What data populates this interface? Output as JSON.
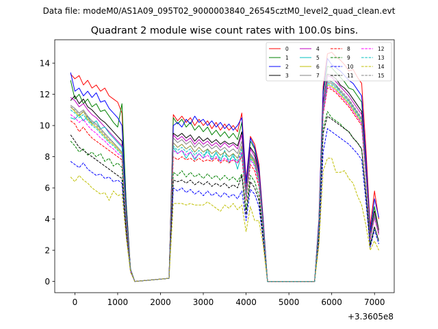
{
  "figure": {
    "suptitle": "Data file: modeM0/AS1A09_095T02_9000003840_26545cztM0_level2_quad_clean.evt"
  },
  "chart_data": {
    "type": "line",
    "title": "Quadrant 2 module wise count rates with 100.0s bins.",
    "xlabel": "",
    "ylabel": "",
    "offset_label": "+3.3605e8",
    "xlim": [
      -470,
      7460
    ],
    "ylim": [
      -0.72,
      15.5
    ],
    "xticks": [
      0,
      1000,
      2000,
      3000,
      4000,
      5000,
      6000,
      7000
    ],
    "yticks": [
      0,
      2,
      4,
      6,
      8,
      10,
      12,
      14
    ],
    "legend": {
      "location": "top-right",
      "columns": 4
    },
    "x": [
      -100,
      0,
      100,
      200,
      300,
      400,
      500,
      600,
      700,
      800,
      900,
      1000,
      1100,
      1200,
      1300,
      1400,
      2200,
      2300,
      2400,
      2500,
      2600,
      2700,
      2800,
      2900,
      3000,
      3100,
      3200,
      3300,
      3400,
      3500,
      3600,
      3700,
      3800,
      3900,
      4000,
      4100,
      4200,
      4300,
      4400,
      4500,
      5600,
      5700,
      5800,
      5900,
      6000,
      6100,
      6200,
      6300,
      6400,
      6500,
      6600,
      6700,
      6800,
      6900,
      7000,
      7100
    ],
    "series": [
      {
        "name": "0",
        "color": "#ff0000",
        "dash": false,
        "values": [
          13.3,
          13.0,
          13.2,
          12.6,
          12.9,
          12.4,
          12.6,
          12.2,
          12.4,
          11.9,
          11.7,
          11.5,
          10.8,
          5.0,
          0.8,
          0.0,
          0.2,
          10.7,
          10.3,
          10.6,
          10.2,
          10.5,
          10.0,
          10.4,
          10.0,
          10.3,
          9.8,
          10.2,
          9.7,
          10.1,
          9.7,
          10.0,
          9.6,
          10.8,
          6.5,
          9.3,
          8.8,
          7.5,
          4.0,
          0.0,
          0.0,
          4.0,
          12.5,
          14.6,
          14.7,
          14.4,
          14.2,
          13.9,
          13.5,
          13.6,
          13.1,
          12.7,
          8.5,
          3.5,
          5.8,
          4.0
        ]
      },
      {
        "name": "1",
        "color": "#008000",
        "dash": false,
        "values": [
          12.9,
          11.7,
          12.0,
          11.4,
          11.7,
          11.2,
          11.4,
          10.9,
          11.0,
          10.6,
          10.2,
          9.9,
          11.4,
          5.0,
          0.8,
          0.0,
          0.2,
          10.5,
          10.1,
          10.4,
          9.9,
          10.2,
          9.7,
          10.0,
          9.6,
          9.9,
          9.4,
          9.7,
          9.3,
          9.6,
          9.2,
          9.5,
          9.1,
          10.2,
          6.3,
          9.0,
          8.5,
          7.2,
          3.8,
          0.0,
          0.0,
          3.8,
          12.0,
          13.8,
          13.7,
          13.4,
          13.1,
          12.8,
          12.4,
          12.3,
          11.9,
          11.5,
          7.7,
          3.0,
          4.8,
          3.3
        ]
      },
      {
        "name": "2",
        "color": "#0000ff",
        "dash": false,
        "values": [
          13.4,
          12.2,
          12.4,
          11.9,
          12.2,
          11.8,
          12.1,
          11.5,
          11.6,
          11.1,
          10.8,
          10.5,
          10.0,
          4.6,
          0.8,
          0.0,
          0.2,
          10.0,
          10.2,
          9.9,
          10.4,
          10.1,
          10.6,
          10.2,
          10.4,
          10.0,
          10.3,
          9.9,
          10.2,
          9.8,
          10.1,
          9.7,
          10.0,
          10.5,
          6.3,
          9.2,
          8.6,
          7.3,
          3.9,
          0.0,
          0.0,
          3.9,
          12.2,
          14.3,
          13.9,
          13.7,
          13.5,
          13.2,
          12.9,
          12.7,
          12.3,
          11.9,
          7.9,
          3.2,
          5.3,
          4.1
        ]
      },
      {
        "name": "3",
        "color": "#000000",
        "dash": false,
        "values": [
          11.6,
          11.9,
          11.4,
          11.7,
          11.2,
          11.0,
          10.7,
          10.4,
          10.2,
          9.9,
          9.6,
          9.3,
          9.0,
          4.3,
          0.8,
          0.0,
          0.2,
          9.5,
          9.3,
          9.5,
          9.2,
          9.4,
          9.0,
          9.3,
          9.0,
          9.2,
          8.9,
          9.1,
          8.8,
          9.0,
          8.8,
          8.9,
          8.7,
          9.6,
          5.9,
          8.6,
          8.2,
          7.0,
          3.7,
          0.0,
          0.0,
          3.6,
          11.5,
          13.3,
          13.2,
          13.0,
          12.6,
          12.4,
          12.1,
          11.7,
          11.3,
          10.9,
          7.2,
          3.0,
          4.5,
          3.3
        ]
      },
      {
        "name": "4",
        "color": "#bf00bf",
        "dash": false,
        "values": [
          11.8,
          11.6,
          11.2,
          11.4,
          11.0,
          10.7,
          10.5,
          10.2,
          9.9,
          9.6,
          9.3,
          9.0,
          8.7,
          4.2,
          0.8,
          0.0,
          0.2,
          9.4,
          9.1,
          9.3,
          9.0,
          9.2,
          8.8,
          9.1,
          8.8,
          9.0,
          8.7,
          8.9,
          8.6,
          8.9,
          8.6,
          8.8,
          8.5,
          9.4,
          5.8,
          8.5,
          8.0,
          6.9,
          3.6,
          0.0,
          0.0,
          3.6,
          11.4,
          13.2,
          13.1,
          12.8,
          12.5,
          12.2,
          11.9,
          11.5,
          11.1,
          10.7,
          7.1,
          2.9,
          4.4,
          3.2
        ]
      },
      {
        "name": "5",
        "color": "#00bfbf",
        "dash": false,
        "values": [
          10.5,
          10.4,
          10.7,
          10.3,
          10.6,
          10.1,
          10.3,
          9.8,
          9.9,
          9.5,
          9.2,
          8.9,
          8.6,
          4.1,
          0.8,
          0.0,
          0.2,
          8.6,
          8.2,
          8.4,
          7.9,
          8.3,
          7.8,
          8.2,
          7.9,
          8.5,
          7.8,
          8.3,
          7.7,
          8.4,
          7.6,
          8.2,
          7.2,
          8.2,
          5.4,
          8.1,
          7.7,
          6.6,
          3.5,
          0.0,
          0.0,
          3.5,
          11.0,
          12.9,
          12.8,
          12.6,
          12.2,
          11.9,
          11.6,
          11.2,
          10.8,
          10.4,
          6.9,
          2.8,
          4.3,
          3.1
        ]
      },
      {
        "name": "6",
        "color": "#bfbf00",
        "dash": false,
        "values": [
          11.2,
          10.9,
          10.6,
          10.9,
          10.4,
          10.1,
          9.9,
          9.6,
          9.3,
          9.0,
          8.8,
          8.5,
          8.2,
          3.9,
          0.8,
          0.0,
          0.2,
          8.9,
          8.6,
          8.8,
          8.5,
          8.7,
          8.3,
          8.6,
          8.3,
          8.5,
          8.2,
          8.4,
          8.1,
          8.3,
          8.0,
          8.2,
          7.9,
          8.7,
          5.5,
          8.0,
          7.6,
          6.5,
          3.4,
          0.0,
          0.0,
          3.4,
          10.9,
          12.6,
          12.5,
          12.3,
          12.0,
          11.7,
          11.4,
          11.0,
          10.6,
          10.2,
          6.8,
          2.7,
          4.2,
          3.0
        ]
      },
      {
        "name": "7",
        "color": "#808080",
        "dash": false,
        "values": [
          11.3,
          11.1,
          10.8,
          11.0,
          10.6,
          10.3,
          10.1,
          9.8,
          9.5,
          9.2,
          8.9,
          8.6,
          8.3,
          4.0,
          0.8,
          0.0,
          0.2,
          9.2,
          8.9,
          9.1,
          8.8,
          9.0,
          8.6,
          8.9,
          8.6,
          8.8,
          8.5,
          8.7,
          8.4,
          8.6,
          8.3,
          8.5,
          8.2,
          9.0,
          5.6,
          8.2,
          7.8,
          6.7,
          3.5,
          0.0,
          0.0,
          3.5,
          11.1,
          12.8,
          12.7,
          12.5,
          12.2,
          11.9,
          11.6,
          11.2,
          10.8,
          10.4,
          6.9,
          2.8,
          4.3,
          3.1
        ]
      },
      {
        "name": "8",
        "color": "#ff0000",
        "dash": true,
        "values": [
          10.3,
          10.1,
          9.6,
          9.9,
          9.5,
          9.2,
          9.0,
          8.8,
          8.6,
          8.4,
          8.2,
          8.0,
          7.8,
          3.7,
          0.7,
          0.0,
          0.2,
          8.0,
          7.8,
          8.0,
          7.8,
          7.9,
          7.7,
          7.9,
          7.7,
          7.8,
          7.7,
          7.9,
          7.6,
          7.8,
          7.6,
          7.8,
          7.6,
          8.0,
          5.2,
          7.5,
          7.1,
          6.1,
          3.3,
          0.0,
          0.0,
          3.3,
          10.7,
          12.4,
          12.3,
          12.1,
          11.8,
          11.5,
          11.2,
          10.8,
          10.4,
          10.0,
          6.6,
          2.7,
          4.1,
          3.0
        ]
      },
      {
        "name": "9",
        "color": "#008000",
        "dash": true,
        "values": [
          9.0,
          8.7,
          8.3,
          8.5,
          8.1,
          8.3,
          8.0,
          8.2,
          7.7,
          7.9,
          7.4,
          7.6,
          7.3,
          3.4,
          0.7,
          0.0,
          0.2,
          7.0,
          6.8,
          7.1,
          6.7,
          7.0,
          6.7,
          6.9,
          6.6,
          6.9,
          6.6,
          6.8,
          6.5,
          6.8,
          6.5,
          6.7,
          6.4,
          6.9,
          4.6,
          6.8,
          6.4,
          5.5,
          3.0,
          0.0,
          0.0,
          3.0,
          9.8,
          10.9,
          10.5,
          10.3,
          10.1,
          9.8,
          9.6,
          9.2,
          8.9,
          8.5,
          5.6,
          2.4,
          3.5,
          2.6
        ]
      },
      {
        "name": "10",
        "color": "#0000ff",
        "dash": true,
        "values": [
          7.7,
          7.5,
          7.3,
          7.6,
          7.2,
          7.0,
          6.8,
          6.9,
          6.6,
          6.7,
          6.4,
          6.5,
          6.3,
          3.0,
          0.6,
          0.0,
          0.2,
          6.0,
          5.8,
          6.0,
          5.7,
          5.9,
          5.6,
          5.8,
          5.5,
          5.8,
          5.5,
          5.7,
          5.4,
          5.7,
          5.4,
          5.6,
          5.3,
          5.8,
          3.9,
          5.9,
          5.6,
          4.8,
          2.6,
          0.0,
          0.0,
          2.6,
          8.3,
          9.8,
          9.6,
          9.4,
          9.2,
          9.0,
          8.8,
          8.5,
          8.2,
          7.8,
          5.1,
          2.2,
          3.3,
          2.4
        ]
      },
      {
        "name": "11",
        "color": "#000000",
        "dash": true,
        "values": [
          9.4,
          9.0,
          8.6,
          8.4,
          8.2,
          8.0,
          7.8,
          7.6,
          7.4,
          7.2,
          7.0,
          6.8,
          6.6,
          3.2,
          0.7,
          0.0,
          0.2,
          6.5,
          6.4,
          6.5,
          6.3,
          6.5,
          6.2,
          6.4,
          6.2,
          6.4,
          6.1,
          6.3,
          6.1,
          6.3,
          6.0,
          6.2,
          6.0,
          6.8,
          4.3,
          6.4,
          6.0,
          5.2,
          2.8,
          0.0,
          0.0,
          2.8,
          9.5,
          10.6,
          10.4,
          10.2,
          10.0,
          9.8,
          9.6,
          9.2,
          8.9,
          8.5,
          5.6,
          2.3,
          3.5,
          2.6
        ]
      },
      {
        "name": "12",
        "color": "#ff00ff",
        "dash": true,
        "values": [
          10.7,
          10.5,
          10.2,
          10.4,
          10.0,
          9.7,
          9.5,
          9.2,
          9.0,
          8.7,
          8.5,
          8.2,
          8.0,
          3.8,
          0.7,
          0.0,
          0.2,
          8.4,
          8.2,
          8.4,
          8.1,
          8.3,
          7.9,
          8.2,
          7.9,
          8.1,
          7.8,
          8.0,
          7.7,
          7.9,
          7.7,
          7.8,
          7.6,
          8.3,
          5.3,
          7.8,
          7.4,
          6.3,
          3.3,
          0.0,
          0.0,
          3.4,
          10.8,
          12.5,
          12.4,
          12.2,
          11.9,
          11.6,
          11.3,
          10.9,
          10.5,
          10.1,
          6.7,
          2.7,
          4.1,
          3.0
        ]
      },
      {
        "name": "13",
        "color": "#00bfbf",
        "dash": true,
        "values": [
          11.0,
          10.8,
          10.5,
          10.7,
          10.3,
          10.0,
          9.8,
          9.5,
          9.2,
          8.9,
          8.7,
          8.4,
          8.1,
          3.9,
          0.8,
          0.0,
          0.2,
          8.7,
          8.4,
          8.6,
          8.3,
          8.5,
          8.1,
          8.4,
          8.1,
          8.3,
          8.0,
          8.2,
          7.9,
          8.1,
          7.8,
          8.0,
          7.7,
          8.5,
          5.4,
          7.9,
          7.5,
          6.4,
          3.4,
          0.0,
          0.0,
          3.4,
          11.0,
          12.7,
          12.6,
          12.4,
          12.1,
          11.8,
          11.5,
          11.1,
          10.7,
          10.3,
          6.8,
          2.8,
          4.2,
          3.1
        ]
      },
      {
        "name": "14",
        "color": "#bfbf00",
        "dash": true,
        "values": [
          6.7,
          6.4,
          6.8,
          6.5,
          6.3,
          6.0,
          5.8,
          5.6,
          5.7,
          5.2,
          5.8,
          5.5,
          5.6,
          2.8,
          0.6,
          0.0,
          0.2,
          5.0,
          5.0,
          5.0,
          4.9,
          5.0,
          4.9,
          4.9,
          4.9,
          5.1,
          4.9,
          4.7,
          4.5,
          4.9,
          4.7,
          5.0,
          4.6,
          4.9,
          3.2,
          4.8,
          3.9,
          3.9,
          2.3,
          0.0,
          0.0,
          2.3,
          7.1,
          7.9,
          7.9,
          7.0,
          7.0,
          7.1,
          6.6,
          6.3,
          5.5,
          4.9,
          3.6,
          2.0,
          2.6,
          2.0
        ]
      },
      {
        "name": "15",
        "color": "#808080",
        "dash": true,
        "values": [
          11.2,
          11.0,
          10.7,
          10.9,
          10.5,
          10.2,
          10.0,
          9.7,
          9.4,
          9.1,
          8.9,
          8.6,
          8.3,
          4.0,
          0.8,
          0.0,
          0.2,
          8.9,
          8.6,
          8.8,
          8.5,
          8.7,
          8.3,
          8.6,
          8.3,
          8.5,
          8.2,
          8.4,
          8.1,
          8.3,
          8.0,
          8.2,
          7.9,
          8.7,
          5.5,
          8.1,
          7.7,
          6.6,
          3.5,
          0.0,
          0.0,
          3.5,
          11.2,
          12.9,
          12.8,
          12.6,
          12.3,
          12.0,
          11.7,
          11.3,
          10.9,
          10.5,
          7.0,
          2.8,
          4.3,
          3.1
        ]
      }
    ]
  }
}
